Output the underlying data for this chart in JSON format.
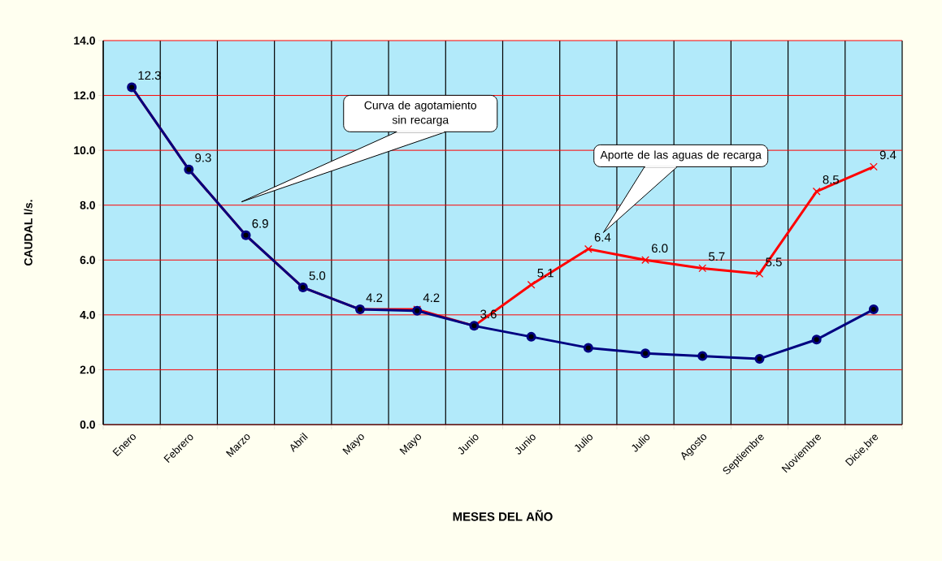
{
  "chart_data": {
    "type": "line",
    "xlabel": "MESES DEL AÑO",
    "ylabel": "CAUDAL l/s.",
    "categories": [
      "Enero",
      "Febrero",
      "Marzo",
      "Abril",
      "Mayo",
      "Mayo",
      "Junio",
      "Junio",
      "Julio",
      "Julio",
      "Agosto",
      "Septiembre",
      "Noviembre",
      "Dicie,bre"
    ],
    "series": [
      {
        "color": "#ff0000",
        "marker": "cross",
        "values": [
          12.3,
          9.3,
          6.9,
          5.0,
          4.2,
          4.2,
          3.6,
          5.1,
          6.4,
          6.0,
          5.7,
          5.5,
          8.5,
          9.4
        ],
        "value_labels": [
          "12.3",
          "9.3",
          "6.9",
          "5.0",
          "4.2",
          "4.2",
          "3.6",
          "5.1",
          "6.4",
          "6.0",
          "5.7",
          "5.5",
          "8.5",
          "9.4"
        ]
      },
      {
        "color": "#000080",
        "marker": "circle",
        "values": [
          12.3,
          9.3,
          6.9,
          5.0,
          4.2,
          4.15,
          3.6,
          3.2,
          2.8,
          2.6,
          2.5,
          2.4,
          3.1,
          4.2
        ]
      }
    ],
    "ylim": [
      0,
      14
    ],
    "yticks": [
      {
        "value": 0,
        "label": "0.0"
      },
      {
        "value": 2,
        "label": "2.0"
      },
      {
        "value": 4,
        "label": "4.0"
      },
      {
        "value": 6,
        "label": "6.0"
      },
      {
        "value": 8,
        "label": "8.0"
      },
      {
        "value": 10,
        "label": "10.0"
      },
      {
        "value": 12,
        "label": "12.0"
      },
      {
        "value": 14,
        "label": "14.0"
      }
    ],
    "grid": true,
    "annotations": [
      "Curva de agotamiento sin recarga",
      "Aporte de las aguas de recarga"
    ]
  }
}
